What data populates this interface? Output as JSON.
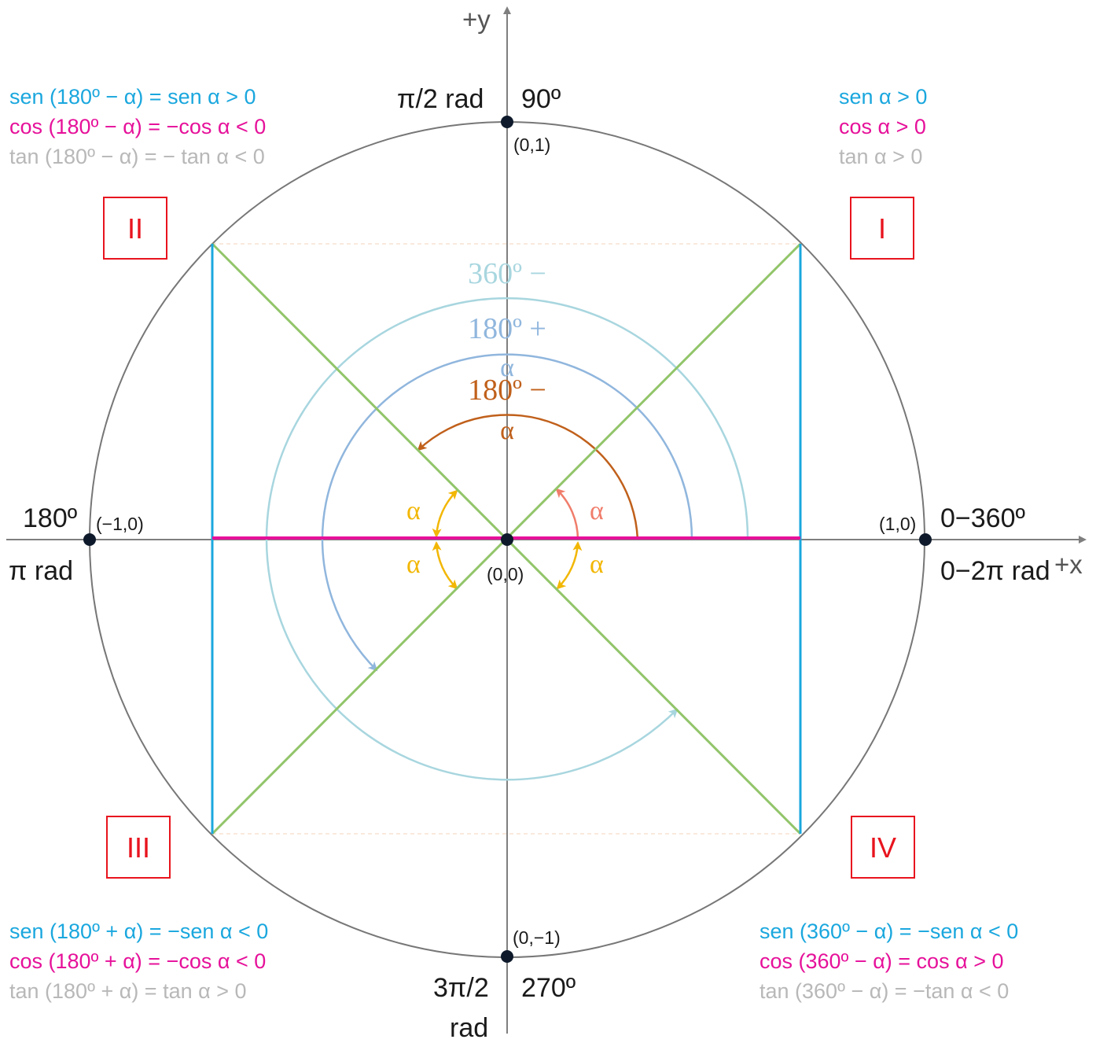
{
  "colors": {
    "circle": "#777777",
    "axis": "#7f7f7f",
    "sine": "#1aa7de",
    "cosine": "#e6119a",
    "tangent": "#b8b8b8",
    "diagonal": "#92c56a",
    "quadrant": "#e8141e",
    "alpha": "#f2b705",
    "alpha_first": "#f07d6b",
    "arc_180_minus": "#c0601b",
    "arc_180_plus": "#90b6dd",
    "arc_360_minus": "#a8d6df"
  },
  "axes": {
    "x_label": "+x",
    "y_label": "+y"
  },
  "points": {
    "origin": "(0,0)",
    "right": "(1,0)",
    "left": "(−1,0)",
    "top": "(0,1)",
    "bottom": "(0,−1)"
  },
  "angles": {
    "top_rad": "π/2 rad",
    "top_deg": "90º",
    "left_deg": "180º",
    "left_rad": "π rad",
    "right_deg": "0−360º",
    "right_rad": "0−2π rad",
    "bottom_rad_1": "3π/2",
    "bottom_rad_2": "rad",
    "bottom_deg": "270º"
  },
  "quadrants": {
    "q1": "I",
    "q2": "II",
    "q3": "III",
    "q4": "IV"
  },
  "arcs": {
    "arc_360_minus": "360º −",
    "arc_180_plus_1": "180º +",
    "arc_180_plus_2": "α",
    "arc_180_minus_1": "180º −",
    "arc_180_minus_2": "α",
    "alpha": "α"
  },
  "formulas": {
    "q1": {
      "sen": "sen α > 0",
      "cos": "cos α > 0",
      "tan": "tan α > 0"
    },
    "q2": {
      "sen": "sen (180º − α) = sen α > 0",
      "cos": "cos (180º − α) = −cos α < 0",
      "tan": "tan (180º − α) = − tan α < 0"
    },
    "q3": {
      "sen": "sen (180º + α) = −sen α < 0",
      "cos": "cos (180º + α) = −cos α < 0",
      "tan": "tan (180º + α) = tan α > 0"
    },
    "q4": {
      "sen": "sen (360º − α) = −sen α < 0",
      "cos": "cos (360º − α) = cos α > 0",
      "tan": "tan (360º − α) = −tan α < 0"
    }
  }
}
